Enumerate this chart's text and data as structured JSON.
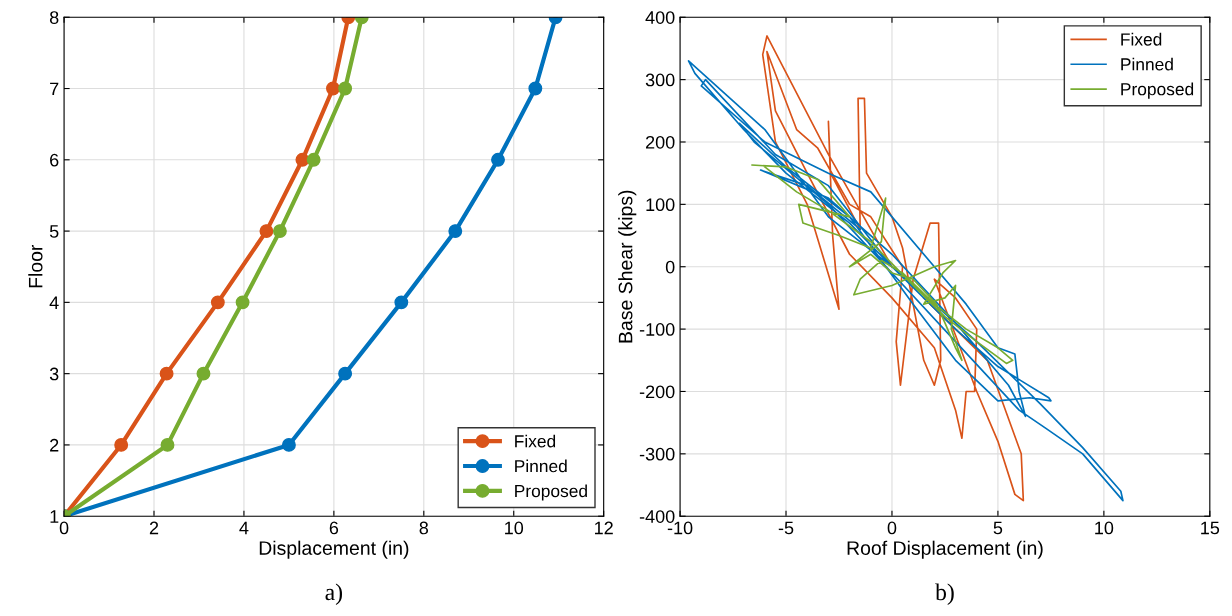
{
  "chart_data": [
    {
      "type": "line",
      "xlabel": "Displacement (in)",
      "ylabel": "Floor",
      "annotations": [
        "a)"
      ],
      "xlim": [
        0,
        12
      ],
      "xticks": [
        0,
        2,
        4,
        6,
        8,
        10,
        12
      ],
      "ylim": [
        1,
        8
      ],
      "yticks": [
        1,
        2,
        3,
        4,
        5,
        6,
        7,
        8
      ],
      "grid": true,
      "legend": "bottom right",
      "marker": "circle",
      "line_style": "solid",
      "series": [
        {
          "name": "Fixed",
          "color": "#d95319",
          "x": [
            0,
            1.27,
            2.28,
            3.42,
            4.5,
            5.3,
            5.98,
            6.32
          ],
          "values": [
            1,
            2,
            3,
            4,
            5,
            6,
            7,
            8
          ]
        },
        {
          "name": "Pinned",
          "color": "#0072bd",
          "x": [
            0,
            5.0,
            6.25,
            7.5,
            8.7,
            9.65,
            10.48,
            10.93
          ],
          "values": [
            1,
            2,
            3,
            4,
            5,
            6,
            7,
            8
          ]
        },
        {
          "name": "Proposed",
          "color": "#77ac30",
          "x": [
            0,
            2.3,
            3.1,
            3.97,
            4.8,
            5.55,
            6.25,
            6.62
          ],
          "values": [
            1,
            2,
            3,
            4,
            5,
            6,
            7,
            8
          ]
        }
      ]
    },
    {
      "type": "line",
      "xlabel": "Roof Displacement (in)",
      "ylabel": "Base Shear (kips)",
      "annotations": [
        "b)"
      ],
      "xlim": [
        -10,
        15
      ],
      "xticks": [
        -10,
        -5,
        0,
        5,
        10,
        15
      ],
      "ylim": [
        -400,
        400
      ],
      "yticks": [
        -400,
        -300,
        -200,
        -100,
        0,
        100,
        200,
        300,
        400
      ],
      "grid": true,
      "legend": "top right",
      "marker": "none",
      "line_style": "solid",
      "series": [
        {
          "name": "Fixed",
          "color": "#d95319",
          "x": [
            0,
            -1,
            -3,
            -5.9,
            -6.1,
            -5.5,
            -4,
            -2.5,
            -2.8,
            -3.0,
            -2.9,
            -1.5,
            -1.6,
            -1.3,
            -1.2,
            0,
            0.5,
            1.5,
            2,
            2.3,
            2.2,
            1.8,
            1,
            0.4,
            0.2,
            0.5,
            -1,
            -2,
            -3.5,
            -4.5,
            -5.9,
            -5.5,
            -4,
            -2,
            0,
            2,
            3,
            3.3,
            3.5,
            3.9,
            4,
            3,
            2,
            4,
            5,
            5.8,
            6.2,
            6.1,
            4.5,
            3,
            1.5
          ],
          "values": [
            0,
            60,
            180,
            370,
            340,
            200,
            100,
            -68,
            50,
            233,
            150,
            60,
            270,
            270,
            150,
            80,
            30,
            -150,
            -190,
            -150,
            70,
            70,
            -20,
            -190,
            -120,
            0,
            80,
            100,
            190,
            220,
            345,
            250,
            150,
            20,
            -50,
            -130,
            -230,
            -275,
            -200,
            -200,
            -100,
            -50,
            -20,
            -200,
            -280,
            -365,
            -375,
            -300,
            -150,
            -100,
            -50
          ]
        },
        {
          "name": "Pinned",
          "color": "#0072bd",
          "x": [
            0,
            -3,
            -6,
            -9.6,
            -9.3,
            -7,
            -5,
            -2,
            0,
            3,
            5,
            7.4,
            7.5,
            6.5,
            5,
            3,
            1,
            -2,
            -5,
            -7.2,
            -6.5,
            -3,
            0,
            3,
            6,
            7.3,
            9,
            10.9,
            10.8,
            9,
            7,
            4,
            0,
            -3,
            -5.5,
            -8.8,
            -9,
            -6,
            -3,
            -1,
            2,
            3.5,
            5,
            5.8,
            6,
            6.3,
            5.5,
            3,
            0,
            -3,
            -6.2,
            -4,
            -1.5
          ],
          "values": [
            0,
            80,
            220,
            330,
            310,
            220,
            150,
            70,
            0,
            -100,
            -160,
            -210,
            -215,
            -210,
            -215,
            -150,
            -60,
            80,
            160,
            230,
            200,
            100,
            -10,
            -120,
            -230,
            -260,
            -300,
            -375,
            -360,
            -290,
            -220,
            -120,
            0,
            130,
            180,
            300,
            290,
            200,
            150,
            120,
            0,
            -60,
            -130,
            -140,
            -200,
            -240,
            -190,
            -90,
            20,
            110,
            155,
            130,
            60
          ]
        },
        {
          "name": "Proposed",
          "color": "#77ac30",
          "x": [
            -6.6,
            -5,
            -3.5,
            -2,
            -4.4,
            -4.2,
            -2.5,
            -1,
            -0.3,
            -0.5,
            -2,
            -1,
            0,
            1,
            2.1,
            2.5,
            3,
            3.3,
            2.8,
            3.0,
            2.5,
            1.5,
            2.4,
            3.0,
            2,
            0,
            -1.8,
            -1.5,
            -0.5,
            0.5,
            2,
            3.5,
            5,
            5.7,
            5.4,
            4,
            2.5,
            1,
            -1,
            -3,
            -4.5,
            -6
          ],
          "values": [
            163,
            160,
            140,
            80,
            100,
            70,
            50,
            30,
            110,
            40,
            0,
            20,
            -10,
            -20,
            -60,
            -90,
            -130,
            -150,
            -100,
            -30,
            -50,
            -60,
            -10,
            10,
            0,
            -30,
            -45,
            -20,
            10,
            -10,
            -60,
            -100,
            -130,
            -150,
            -155,
            -120,
            -80,
            -30,
            40,
            90,
            120,
            160
          ]
        }
      ]
    }
  ]
}
